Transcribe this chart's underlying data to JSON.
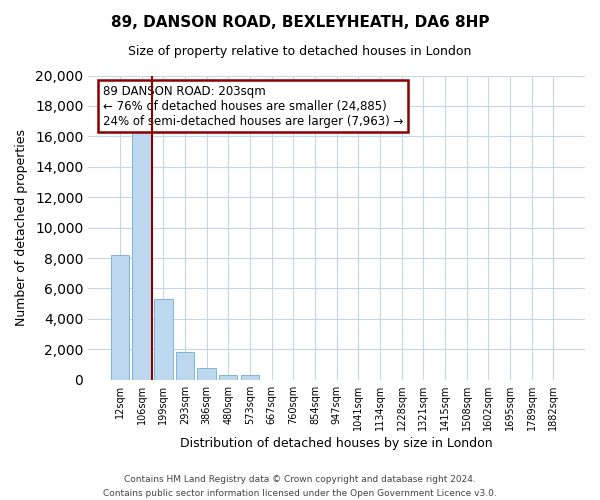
{
  "title": "89, DANSON ROAD, BEXLEYHEATH, DA6 8HP",
  "subtitle": "Size of property relative to detached houses in London",
  "xlabel": "Distribution of detached houses by size in London",
  "ylabel": "Number of detached properties",
  "bar_labels": [
    "12sqm",
    "106sqm",
    "199sqm",
    "293sqm",
    "386sqm",
    "480sqm",
    "573sqm",
    "667sqm",
    "760sqm",
    "854sqm",
    "947sqm",
    "1041sqm",
    "1134sqm",
    "1228sqm",
    "1321sqm",
    "1415sqm",
    "1508sqm",
    "1602sqm",
    "1695sqm",
    "1789sqm",
    "1882sqm"
  ],
  "bar_values": [
    8200,
    16600,
    5300,
    1800,
    750,
    280,
    280,
    0,
    0,
    0,
    0,
    0,
    0,
    0,
    0,
    0,
    0,
    0,
    0,
    0,
    0
  ],
  "bar_color": "#bdd7ee",
  "bar_edge_color": "#6baed6",
  "vline_color": "#8b0000",
  "vline_x_bar_index": 2,
  "annotation_title": "89 DANSON ROAD: 203sqm",
  "annotation_line1": "← 76% of detached houses are smaller (24,885)",
  "annotation_line2": "24% of semi-detached houses are larger (7,963) →",
  "ylim": [
    0,
    20000
  ],
  "yticks": [
    0,
    2000,
    4000,
    6000,
    8000,
    10000,
    12000,
    14000,
    16000,
    18000,
    20000
  ],
  "footer_line1": "Contains HM Land Registry data © Crown copyright and database right 2024.",
  "footer_line2": "Contains public sector information licensed under the Open Government Licence v3.0.",
  "background_color": "#ffffff",
  "grid_color": "#c8d4e8"
}
